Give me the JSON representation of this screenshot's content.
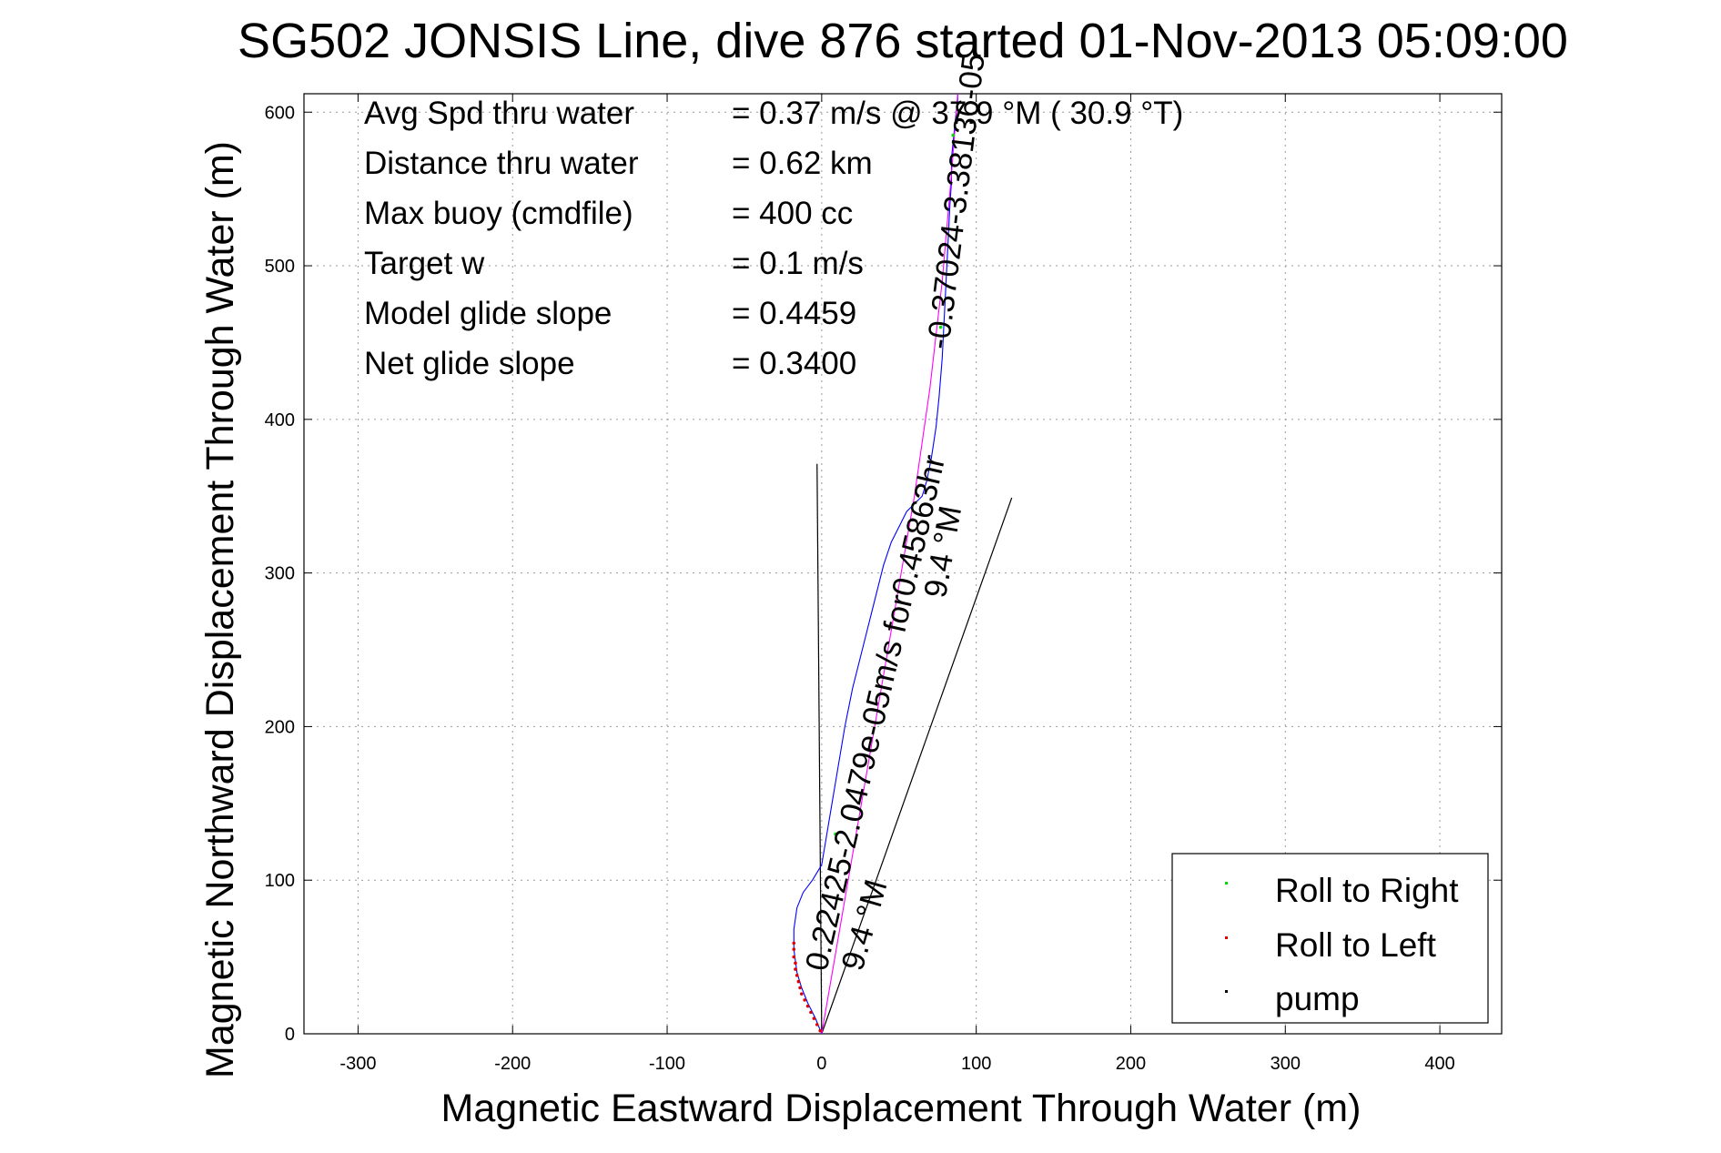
{
  "chart_data": {
    "type": "scatter",
    "title": "SG502 JONSIS Line, dive 876 started 01-Nov-2013 05:09:00",
    "xlabel": "Magnetic Eastward Displacement Through Water (m)",
    "ylabel": "Magnetic Northward Displacement Through Water (m)",
    "xlim": [
      -335,
      440
    ],
    "ylim": [
      0,
      612
    ],
    "xticks": [
      -300,
      -200,
      -100,
      0,
      100,
      200,
      300,
      400
    ],
    "yticks": [
      0,
      100,
      200,
      300,
      400,
      500,
      600
    ],
    "grid": true,
    "legend_position": "bottom-right",
    "legend": [
      {
        "label": "Roll to Right",
        "color": "#00dd00"
      },
      {
        "label": "Roll to Left",
        "color": "#dd0000"
      },
      {
        "label": "pump",
        "color": "#000000"
      }
    ],
    "stats": [
      {
        "label": "Avg Spd thru water",
        "value": "=  0.37 m/s @  37.9 °M ( 30.9 °T)"
      },
      {
        "label": "Distance thru water",
        "value": "=  0.62 km"
      },
      {
        "label": "Max buoy (cmdfile)",
        "value": "= 400 cc"
      },
      {
        "label": "Target w",
        "value": "= 0.1 m/s"
      },
      {
        "label": "Model glide slope",
        "value": "= 0.4459"
      },
      {
        "label": "Net glide slope",
        "value": "= 0.3400"
      }
    ],
    "series": [
      {
        "color": "#0000ff",
        "x": [
          0,
          -4,
          -9,
          -13,
          -16,
          -18,
          -18,
          -16,
          -12,
          -6,
          0,
          5,
          10,
          15,
          20,
          25,
          30,
          35,
          40,
          45,
          50,
          55,
          60,
          65,
          68,
          71,
          74,
          76,
          78,
          79,
          80,
          81,
          82,
          83,
          84,
          84,
          85,
          86,
          87,
          88,
          88
        ],
        "y": [
          0,
          10,
          20,
          30,
          40,
          55,
          68,
          82,
          92,
          100,
          110,
          140,
          170,
          200,
          225,
          245,
          265,
          285,
          305,
          320,
          330,
          340,
          345,
          350,
          360,
          375,
          395,
          415,
          440,
          460,
          480,
          500,
          520,
          540,
          555,
          570,
          580,
          590,
          600,
          608,
          612
        ]
      },
      {
        "color": "#ff00ff",
        "x": [
          0,
          12,
          24,
          36,
          48,
          60,
          70,
          78,
          84,
          88
        ],
        "y": [
          0,
          70,
          140,
          210,
          280,
          350,
          420,
          490,
          560,
          612
        ]
      },
      {
        "name": "Roll to Left",
        "color": "#dd0000",
        "x": [
          -1,
          -3,
          -5,
          -7,
          -9,
          -11,
          -13,
          -14,
          -15,
          -16,
          -17,
          -17,
          -18,
          -18,
          -18
        ],
        "y": [
          2,
          6,
          10,
          14,
          18,
          22,
          26,
          30,
          34,
          38,
          42,
          46,
          50,
          55,
          59
        ]
      },
      {
        "name": "Roll to Right",
        "color": "#00dd00",
        "x": [
          9,
          77,
          85
        ],
        "y": [
          130,
          460,
          585
        ]
      }
    ],
    "lines": [
      {
        "color": "#000000",
        "x": [
          0,
          -3
        ],
        "y": [
          0,
          371
        ]
      },
      {
        "color": "#000000",
        "x": [
          0,
          123
        ],
        "y": [
          0,
          349
        ]
      }
    ],
    "annotations": [
      {
        "text": "0.22425-2.0479e-05m/s for0.45863hr",
        "x": 3,
        "y": 40,
        "angle": -77
      },
      {
        "text": "9.4 °M",
        "x": 26,
        "y": 40,
        "angle": -74
      },
      {
        "text": "9.4 °M",
        "x": 80,
        "y": 283,
        "angle": -80
      },
      {
        "text": "-0.37024-3.38136-05",
        "x": 82,
        "y": 445,
        "angle": -83
      }
    ]
  }
}
